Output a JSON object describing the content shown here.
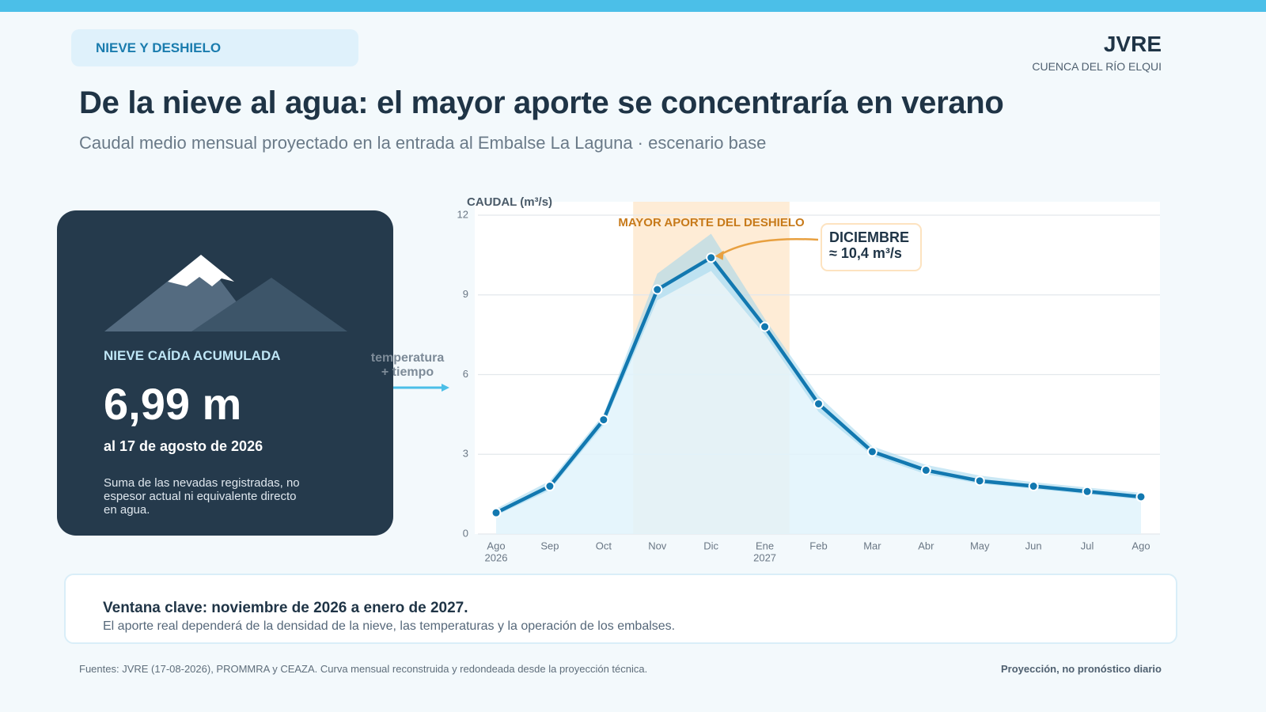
{
  "header": {
    "tag": "NIEVE Y DESHIELO",
    "brand": "JVRE",
    "brand_sub": "CUENCA DEL RÍO ELQUI",
    "title": "De la nieve al agua: el mayor aporte se concentraría en verano",
    "subtitle": "Caudal medio mensual proyectado en la entrada al Embalse La Laguna · escenario base"
  },
  "card": {
    "label": "NIEVE CAÍDA ACUMULADA",
    "value": "6,99 m",
    "date": "al 17 de agosto de 2026",
    "note": "Suma de las nevadas registradas, no espesor actual ni equivalente directo en agua."
  },
  "connector": {
    "line1": "temperatura",
    "line2": "+ tiempo"
  },
  "chart_data": {
    "type": "line",
    "y_label": "CAUDAL (m³/s)",
    "categories": [
      "Ago",
      "Sep",
      "Oct",
      "Nov",
      "Dic",
      "Ene",
      "Feb",
      "Mar",
      "Abr",
      "May",
      "Jun",
      "Jul",
      "Ago"
    ],
    "category_years": [
      "2026",
      null,
      null,
      null,
      null,
      "2027",
      null,
      null,
      null,
      null,
      null,
      null,
      null
    ],
    "values": [
      0.8,
      1.8,
      4.3,
      9.2,
      10.4,
      7.8,
      4.9,
      3.1,
      2.4,
      2.0,
      1.8,
      1.6,
      1.4
    ],
    "band": {
      "lower": [
        0.7,
        1.65,
        4.1,
        8.8,
        9.9,
        7.5,
        4.6,
        2.95,
        2.25,
        1.9,
        1.7,
        1.5,
        1.3
      ],
      "upper": [
        0.95,
        2.0,
        4.5,
        9.8,
        11.3,
        8.1,
        5.2,
        3.3,
        2.6,
        2.2,
        1.95,
        1.75,
        1.55
      ]
    },
    "color": "#1278b0",
    "band_color": "#9fd6ec",
    "area_color": "#e0f3fb",
    "highlight": {
      "label": "MAYOR APORTE DEL DESHIELO",
      "from": "Nov",
      "to": "Ene",
      "color": "#fde6c8"
    },
    "annotation": {
      "title": "DICIEMBRE",
      "text": "≈ 10,4 m³/s",
      "target": "Dic"
    },
    "ylim": [
      0,
      12
    ],
    "yticks": [
      0,
      3,
      6,
      9,
      12
    ],
    "grid": true
  },
  "callout": {
    "bold": "Ventana clave: noviembre de 2026 a enero de 2027.",
    "text": "El aporte real dependerá de la densidad de la nieve, las temperaturas y la operación de los embalses."
  },
  "footer": {
    "sources": "Fuentes: JVRE (17-08-2026), PROMMRA y CEAZA. Curva mensual reconstruida y redondeada desde la proyección técnica.",
    "note": "Proyección, no pronóstico diario"
  }
}
